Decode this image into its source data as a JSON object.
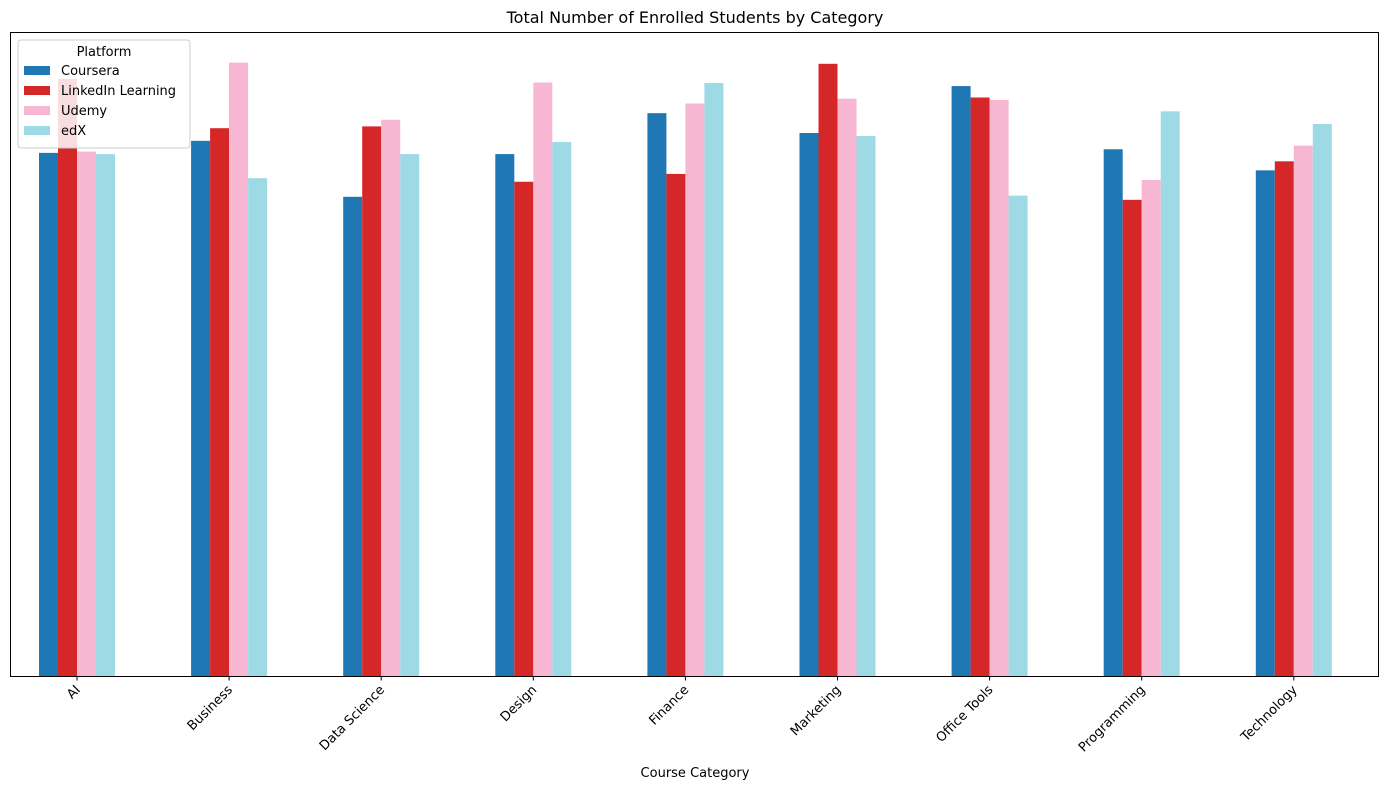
{
  "chart_data": {
    "type": "bar",
    "title": "Total Number of Enrolled Students by Category",
    "xlabel": "Course Category",
    "ylabel": "",
    "categories": [
      "AI",
      "Business",
      "Data Science",
      "Design",
      "Finance",
      "Marketing",
      "Office Tools",
      "Programming",
      "Technology"
    ],
    "series": [
      {
        "name": "Coursera",
        "color": "#1f77b4",
        "values": [
          0.87,
          0.89,
          0.797,
          0.868,
          0.936,
          0.903,
          0.981,
          0.876,
          0.841
        ]
      },
      {
        "name": "LinkedIn Learning",
        "color": "#d62728",
        "values": [
          0.993,
          0.911,
          0.914,
          0.822,
          0.835,
          1.018,
          0.962,
          0.792,
          0.856
        ]
      },
      {
        "name": "Udemy",
        "color": "#f7b6d2",
        "values": [
          0.872,
          1.02,
          0.925,
          0.987,
          0.952,
          0.96,
          0.958,
          0.825,
          0.882
        ]
      },
      {
        "name": "edX",
        "color": "#9edae5",
        "values": [
          0.868,
          0.828,
          0.868,
          0.888,
          0.986,
          0.898,
          0.799,
          0.939,
          0.918
        ]
      }
    ],
    "ylim": [
      0,
      1.07
    ],
    "y_ticks_visible": false,
    "grid": false,
    "legend": {
      "title": "Platform",
      "position": "top-left"
    }
  }
}
